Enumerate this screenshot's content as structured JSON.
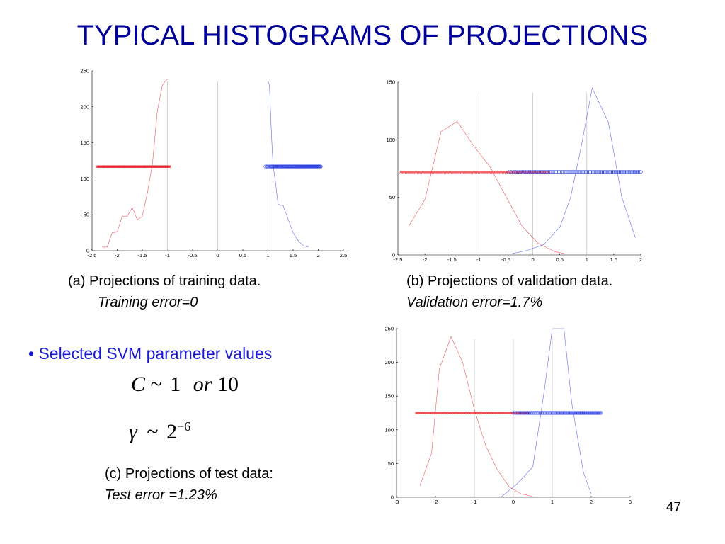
{
  "title": "TYPICAL HISTOGRAMS OF PROJECTIONS",
  "colors": {
    "title": "#000099",
    "bullet": "#1a1ad6",
    "red": "#e8202a",
    "blue": "#2a3ee0",
    "vline": "#c8c8c8"
  },
  "captions": {
    "a": {
      "main": "(a) Projections of training data.",
      "sub": "Training error=0"
    },
    "b": {
      "main": "(b) Projections of validation data.",
      "sub": "Validation error=1.7%"
    },
    "c": {
      "main": "(c) Projections of test data:",
      "sub": "Test error =1.23%"
    }
  },
  "bullet": "• Selected SVM parameter values",
  "params": {
    "c_var": "C",
    "c_tilde": "~",
    "c_one": "1",
    "c_or": "or",
    "c_ten": "10",
    "g_var": "γ",
    "g_tilde": "~",
    "g_base": "2",
    "g_exp": "−6"
  },
  "page_number": "47",
  "chart_data": [
    {
      "type": "line",
      "id": "a",
      "xlim": [
        -2.5,
        2.5
      ],
      "ylim": [
        0,
        250
      ],
      "xticks": [
        -2.5,
        -2,
        -1.5,
        -1,
        -0.5,
        0,
        0.5,
        1,
        1.5,
        2,
        2.5
      ],
      "yticks": [
        0,
        50,
        100,
        150,
        200,
        250
      ],
      "vlines": [
        -1,
        0,
        1
      ],
      "series": [
        {
          "color": "red",
          "x": [
            -2.3,
            -2.2,
            -2.1,
            -2.0,
            -1.9,
            -1.8,
            -1.7,
            -1.6,
            -1.5,
            -1.4,
            -1.3,
            -1.2,
            -1.1,
            -1.05,
            -1.0
          ],
          "y": [
            5,
            5,
            25,
            26,
            48,
            48,
            60,
            43,
            48,
            80,
            120,
            195,
            230,
            235,
            238
          ]
        },
        {
          "color": "blue",
          "x": [
            1.0,
            1.03,
            1.07,
            1.1,
            1.15,
            1.2,
            1.25,
            1.3,
            1.4,
            1.5,
            1.6,
            1.7,
            1.8
          ],
          "y": [
            236,
            230,
            160,
            120,
            95,
            65,
            63,
            63,
            44,
            25,
            14,
            7,
            5
          ]
        }
      ],
      "scatter": [
        {
          "color": "red",
          "marker": "x",
          "xmin": -2.4,
          "xmax": -0.95,
          "y": 117
        },
        {
          "color": "blue",
          "marker": "o",
          "xmin": 0.95,
          "xmax": 2.05,
          "y": 117
        }
      ]
    },
    {
      "type": "line",
      "id": "b",
      "xlim": [
        -2.5,
        2.0
      ],
      "ylim": [
        0,
        150
      ],
      "xticks": [
        -2.5,
        -2,
        -1.5,
        -1,
        -0.5,
        0,
        0.5,
        1,
        1.5,
        2
      ],
      "yticks": [
        0,
        50,
        100,
        150
      ],
      "vlines": [
        -1,
        0,
        1
      ],
      "series": [
        {
          "color": "red",
          "x": [
            -2.3,
            -2.0,
            -1.7,
            -1.4,
            -1.1,
            -0.8,
            -0.5,
            -0.2,
            0.1,
            0.4,
            0.6
          ],
          "y": [
            25,
            48,
            107,
            116,
            95,
            77,
            51,
            25,
            10,
            3,
            1
          ]
        },
        {
          "color": "blue",
          "x": [
            -0.4,
            -0.1,
            0.2,
            0.5,
            0.7,
            0.9,
            1.1,
            1.4,
            1.65,
            1.9
          ],
          "y": [
            1,
            4,
            9,
            24,
            50,
            95,
            145,
            115,
            50,
            15
          ]
        }
      ],
      "scatter": [
        {
          "color": "red",
          "marker": "x",
          "xmin": -2.45,
          "xmax": 0.3,
          "y": 72
        },
        {
          "color": "blue",
          "marker": "o",
          "xmin": -0.45,
          "xmax": 2.0,
          "y": 72
        }
      ]
    },
    {
      "type": "line",
      "id": "c",
      "xlim": [
        -3,
        3
      ],
      "ylim": [
        0,
        250
      ],
      "xticks": [
        -3,
        -2,
        -1,
        0,
        1,
        2,
        3
      ],
      "yticks": [
        0,
        50,
        100,
        150,
        200,
        250
      ],
      "vlines": [
        -1,
        0,
        1
      ],
      "series": [
        {
          "color": "red",
          "x": [
            -2.4,
            -2.1,
            -1.9,
            -1.6,
            -1.3,
            -1.0,
            -0.7,
            -0.4,
            -0.1,
            0.2,
            0.5
          ],
          "y": [
            17,
            65,
            190,
            238,
            200,
            130,
            75,
            40,
            15,
            5,
            1
          ]
        },
        {
          "color": "blue",
          "x": [
            -0.3,
            0.1,
            0.5,
            0.8,
            1.0,
            1.3,
            1.5,
            1.8,
            2.0
          ],
          "y": [
            1,
            20,
            45,
            160,
            250,
            250,
            140,
            37,
            5
          ]
        }
      ],
      "scatter": [
        {
          "color": "red",
          "marker": "x",
          "xmin": -2.5,
          "xmax": 0.4,
          "y": 125
        },
        {
          "color": "blue",
          "marker": "o",
          "xmin": 0.0,
          "xmax": 2.25,
          "y": 125
        }
      ]
    }
  ]
}
